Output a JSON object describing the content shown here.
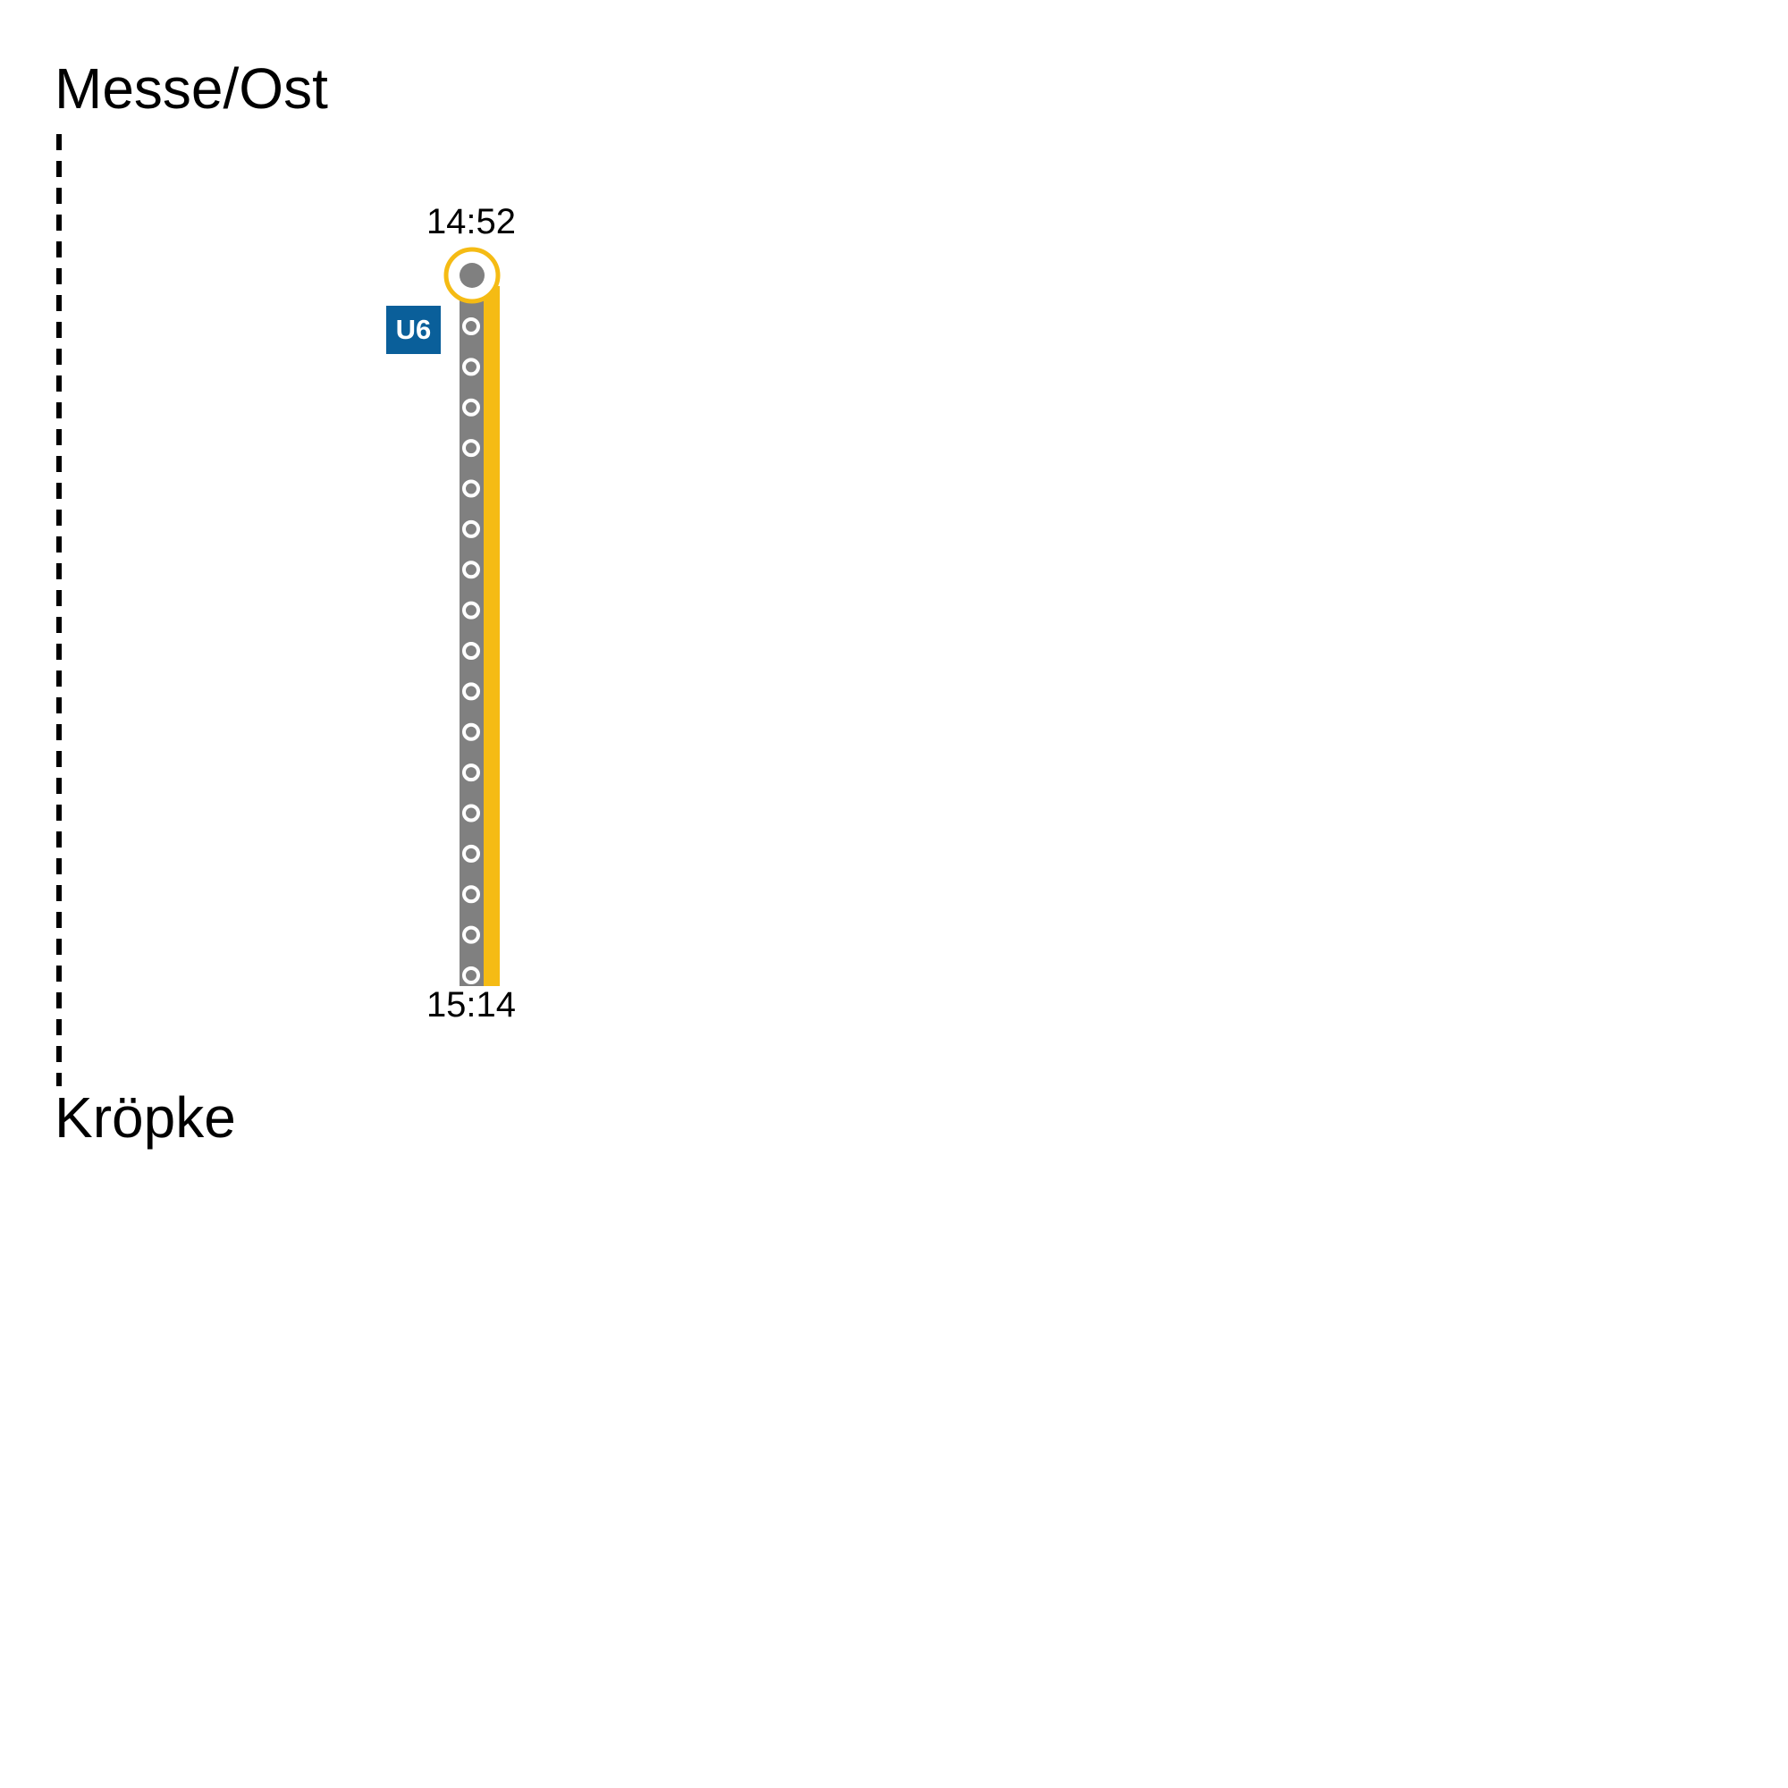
{
  "journey": {
    "origin": "Messe/Ost",
    "destination": "Kröpke",
    "departure_time": "14:52",
    "arrival_time": "15:14",
    "line": {
      "name": "U6",
      "badge_color": "#0a5f9a",
      "line_color": "#f5bb14",
      "track_color": "#808080"
    },
    "intermediate_stops": 17
  }
}
